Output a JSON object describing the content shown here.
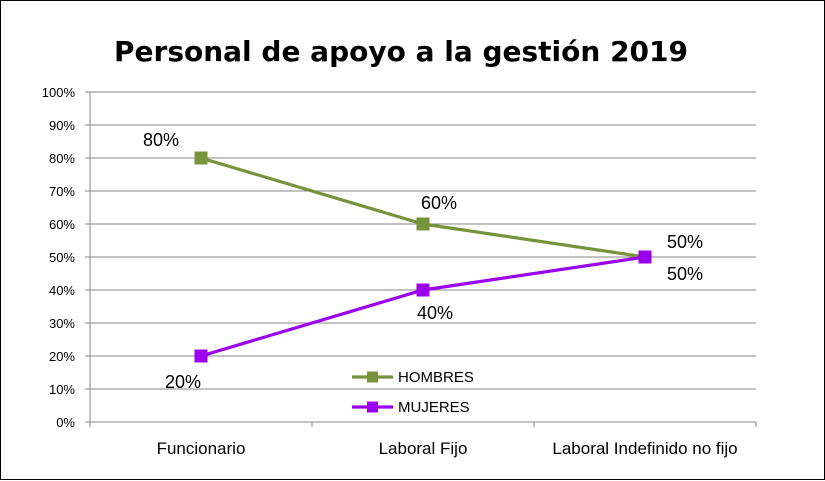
{
  "chart_data": {
    "type": "line",
    "title": "Personal de apoyo a la gestión 2019",
    "xlabel": "",
    "ylabel": "",
    "categories": [
      "Funcionario",
      "Laboral Fijo",
      "Laboral Indefinido no fijo"
    ],
    "ylim": [
      0,
      100
    ],
    "yticks": [
      "0%",
      "10%",
      "20%",
      "30%",
      "40%",
      "50%",
      "60%",
      "70%",
      "80%",
      "90%",
      "100%"
    ],
    "grid": true,
    "legend_position": "bottom-center",
    "series": [
      {
        "name": "HOMBRES",
        "values": [
          80,
          60,
          50
        ],
        "labels": [
          "80%",
          "60%",
          "50%"
        ],
        "color": "#77933C"
      },
      {
        "name": "MUJERES",
        "values": [
          20,
          40,
          50
        ],
        "labels": [
          "20%",
          "40%",
          "50%"
        ],
        "color": "#9B00F0"
      }
    ]
  }
}
